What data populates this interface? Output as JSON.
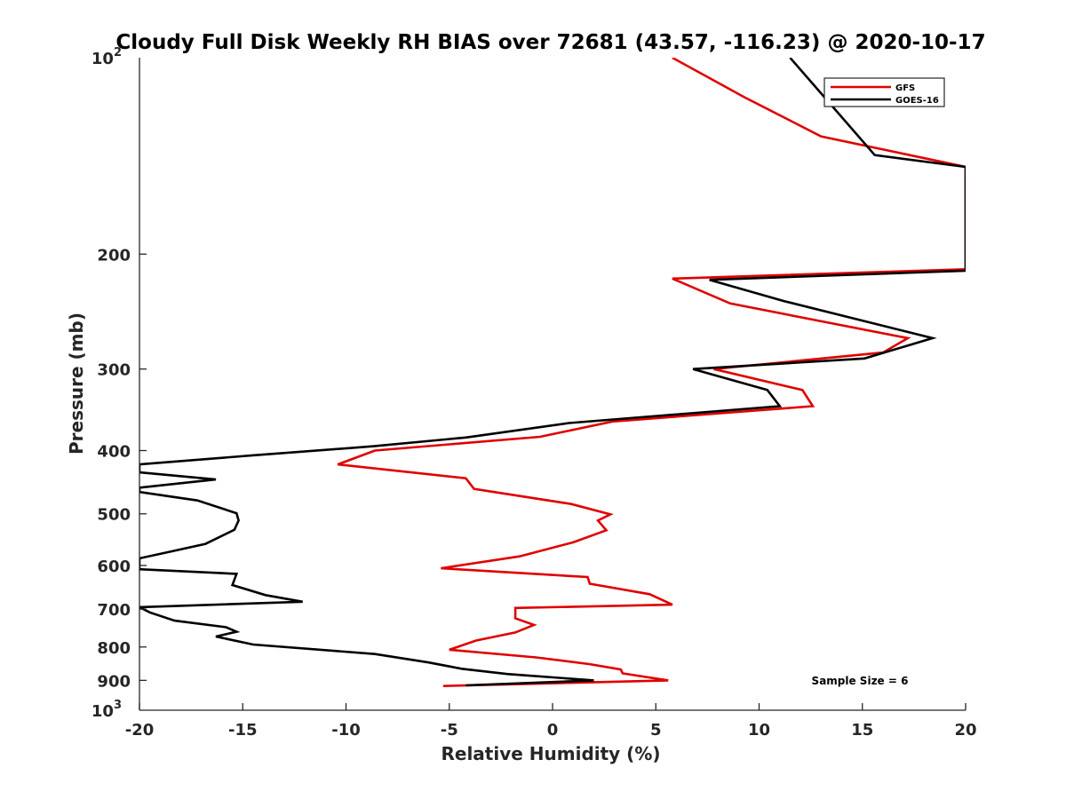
{
  "chart_data": {
    "type": "line",
    "title": "Cloudy Full Disk Weekly RH BIAS over 72681 (43.57, -116.23) @ 2020-10-17",
    "xlabel": "Relative Humidity (%)",
    "ylabel": "Pressure (mb)",
    "xlim": [
      -20,
      20
    ],
    "ylim": [
      100,
      1000
    ],
    "y_scale": "log",
    "y_reversed": true,
    "x_ticks": [
      "-20",
      "-15",
      "-10",
      "-5",
      "0",
      "5",
      "10",
      "15",
      "20"
    ],
    "y_ticks": [
      {
        "value": 100,
        "base": "10",
        "exp": "2"
      },
      {
        "value": 200,
        "label": "200"
      },
      {
        "value": 300,
        "label": "300"
      },
      {
        "value": 400,
        "label": "400"
      },
      {
        "value": 500,
        "label": "500"
      },
      {
        "value": 600,
        "label": "600"
      },
      {
        "value": 700,
        "label": "700"
      },
      {
        "value": 800,
        "label": "800"
      },
      {
        "value": 900,
        "label": "900"
      },
      {
        "value": 1000,
        "base": "10",
        "exp": "3"
      }
    ],
    "grid": false,
    "legend_position": "top-right",
    "annotation": "Sample Size = 6",
    "series": [
      {
        "name": "GFS",
        "color": "#e00000",
        "points": [
          [
            5.8,
            100
          ],
          [
            9.3,
            115
          ],
          [
            13.0,
            132
          ],
          [
            20.0,
            147
          ],
          [
            20.0,
            211
          ],
          [
            5.8,
            218
          ],
          [
            8.6,
            238
          ],
          [
            17.2,
            269
          ],
          [
            16.0,
            283
          ],
          [
            7.8,
            300
          ],
          [
            12.1,
            323
          ],
          [
            12.6,
            342
          ],
          [
            2.9,
            361
          ],
          [
            -0.6,
            381
          ],
          [
            -8.6,
            400
          ],
          [
            -10.4,
            420
          ],
          [
            -4.2,
            441
          ],
          [
            -3.8,
            458
          ],
          [
            0.9,
            483
          ],
          [
            2.8,
            501
          ],
          [
            2.2,
            512
          ],
          [
            2.6,
            530
          ],
          [
            1.0,
            553
          ],
          [
            -1.6,
            581
          ],
          [
            -5.4,
            606
          ],
          [
            1.7,
            625
          ],
          [
            1.8,
            640
          ],
          [
            4.7,
            664
          ],
          [
            5.8,
            689
          ],
          [
            -1.8,
            697
          ],
          [
            -1.8,
            723
          ],
          [
            -0.9,
            740
          ],
          [
            -1.8,
            760
          ],
          [
            -3.7,
            782
          ],
          [
            -5.0,
            808
          ],
          [
            -0.8,
            830
          ],
          [
            1.8,
            850
          ],
          [
            3.3,
            866
          ],
          [
            3.4,
            878
          ],
          [
            5.6,
            900
          ],
          [
            -5.3,
            918
          ]
        ]
      },
      {
        "name": "GOES-16",
        "color": "#000000",
        "points": [
          [
            11.5,
            100
          ],
          [
            15.6,
            141
          ],
          [
            20.0,
            147
          ],
          [
            20.0,
            212
          ],
          [
            7.6,
            219
          ],
          [
            11.2,
            236
          ],
          [
            18.4,
            269
          ],
          [
            15.1,
            289
          ],
          [
            6.8,
            300
          ],
          [
            10.4,
            323
          ],
          [
            11.0,
            342
          ],
          [
            0.8,
            363
          ],
          [
            -4.2,
            382
          ],
          [
            -8.7,
            394
          ],
          [
            -14.6,
            407
          ],
          [
            -20.0,
            420
          ],
          [
            -20.0,
            432
          ],
          [
            -16.3,
            443
          ],
          [
            -20.0,
            456
          ],
          [
            -20.0,
            463
          ],
          [
            -17.2,
            477
          ],
          [
            -15.3,
            499
          ],
          [
            -15.2,
            512
          ],
          [
            -15.4,
            529
          ],
          [
            -16.8,
            556
          ],
          [
            -18.9,
            575
          ],
          [
            -20.0,
            585
          ],
          [
            -20.0,
            608
          ],
          [
            -15.3,
            618
          ],
          [
            -15.5,
            643
          ],
          [
            -13.9,
            666
          ],
          [
            -12.1,
            682
          ],
          [
            -20.0,
            695
          ],
          [
            -19.5,
            708
          ],
          [
            -18.3,
            729
          ],
          [
            -15.8,
            746
          ],
          [
            -15.3,
            758
          ],
          [
            -16.3,
            771
          ],
          [
            -14.5,
            793
          ],
          [
            -8.6,
            820
          ],
          [
            -6.0,
            845
          ],
          [
            -4.4,
            864
          ],
          [
            -2.2,
            880
          ],
          [
            2.0,
            900
          ],
          [
            -4.2,
            916
          ]
        ]
      }
    ]
  }
}
